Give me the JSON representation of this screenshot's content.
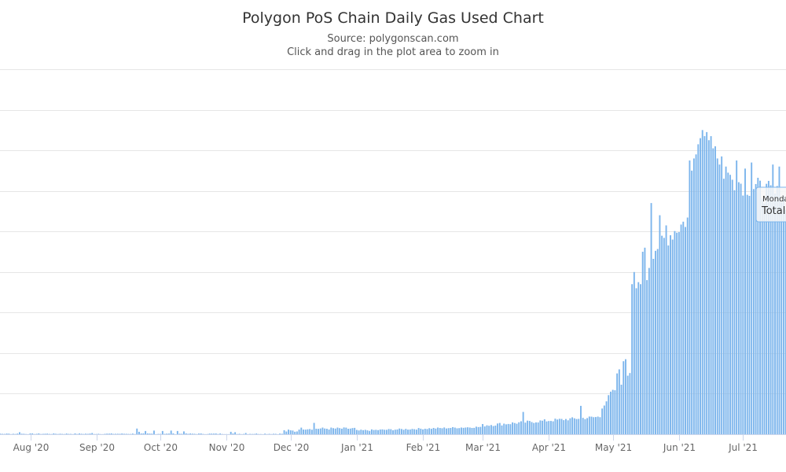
{
  "chart_data": {
    "type": "bar",
    "title": "Polygon PoS Chain Daily Gas Used Chart",
    "subtitle": "Source: polygonscan.com",
    "hint": "Click and drag in the plot area to zoom in",
    "x_tick_labels": [
      "Aug '20",
      "Sep '20",
      "Oct '20",
      "Nov '20",
      "Dec '20",
      "Jan '21",
      "Feb '21",
      "Mar '21",
      "Apr '21",
      "May '21",
      "Jun '21",
      "Jul '21",
      "Aug"
    ],
    "grid": true,
    "bar_color": "#7cb5ec",
    "gridline_color": "#e6e6e6",
    "ymax_relative": 9,
    "segments": [
      {
        "from": "2020-07-10",
        "to": "2020-11-27",
        "base": 0.012,
        "noise": 0.01,
        "spikes": {
          "2020-07-27": 0.05,
          "2020-08-30": 0.03,
          "2020-09-20": 0.14,
          "2020-09-21": 0.06,
          "2020-09-24": 0.08,
          "2020-09-28": 0.09,
          "2020-10-02": 0.08,
          "2020-10-06": 0.09,
          "2020-10-09": 0.08,
          "2020-10-12": 0.07,
          "2020-11-03": 0.06,
          "2020-11-05": 0.05,
          "2020-11-10": 0.03
        }
      },
      {
        "from": "2020-11-28",
        "to": "2020-12-04",
        "base": 0.08,
        "noise": 0.04
      },
      {
        "from": "2020-12-05",
        "to": "2020-12-31",
        "base": 0.14,
        "noise": 0.03,
        "spikes": {
          "2020-12-12": 0.28
        }
      },
      {
        "from": "2021-01-01",
        "to": "2021-02-28",
        "base": 0.09,
        "end": 0.18,
        "noise": 0.02
      },
      {
        "from": "2021-03-01",
        "to": "2021-04-25",
        "base": 0.22,
        "end": 0.43,
        "noise": 0.04,
        "spikes": {
          "2021-03-20": 0.55,
          "2021-04-16": 0.7
        }
      },
      {
        "from": "2021-04-26",
        "to": "2021-05-09",
        "base": 0.7,
        "end": 1.55,
        "noise": 0.08,
        "spikes": {
          "2021-04-30": 1.05,
          "2021-05-03": 1.5,
          "2021-05-04": 1.6,
          "2021-05-06": 1.8,
          "2021-05-07": 1.85
        }
      },
      {
        "from": "2021-05-10",
        "to": "2021-05-19",
        "values": [
          3.7,
          4.0,
          3.6,
          3.75,
          3.7,
          4.5,
          4.6,
          3.8,
          4.1,
          5.7
        ]
      },
      {
        "from": "2021-05-20",
        "to": "2021-06-05",
        "base": 4.55,
        "end": 5.3,
        "noise": 0.25,
        "spikes": {
          "2021-05-23": 5.4,
          "2021-05-26": 5.15
        }
      },
      {
        "from": "2021-06-06",
        "to": "2021-06-15",
        "values": [
          6.75,
          6.5,
          6.8,
          6.9,
          7.15,
          7.3,
          7.5,
          7.35,
          7.45,
          7.25
        ]
      },
      {
        "from": "2021-06-16",
        "to": "2021-06-24",
        "values": [
          7.35,
          7.05,
          7.1,
          6.8,
          6.65,
          6.85,
          6.3,
          6.6,
          6.45
        ]
      },
      {
        "from": "2021-06-25",
        "to": "2021-07-31",
        "base": 6.3,
        "end": 5.6,
        "noise": 0.3,
        "spikes": {
          "2021-06-28": 6.75,
          "2021-07-02": 6.55,
          "2021-07-05": 6.7,
          "2021-07-15": 6.65,
          "2021-07-18": 6.6
        }
      }
    ]
  },
  "tooltip": {
    "line1": "Monda",
    "line2": "Total"
  }
}
